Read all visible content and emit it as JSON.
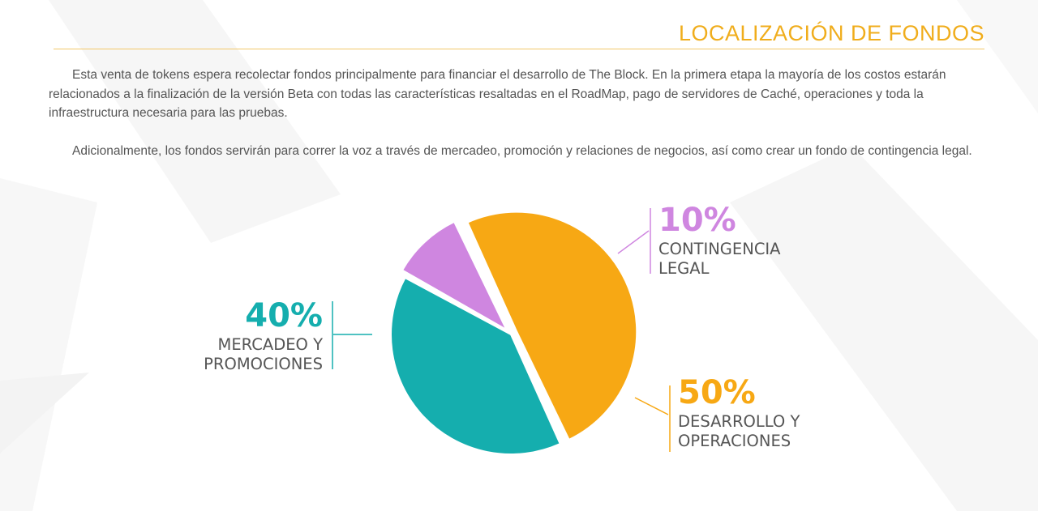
{
  "header": {
    "title": "LOCALIZACIÓN DE FONDOS"
  },
  "body": {
    "paragraph_1": "Esta venta de tokens espera recolectar fondos principalmente para financiar el desarrollo de The Block. En la primera etapa la mayoría de los costos estarán relacionados a la finalización de la versión Beta con todas las características resaltadas en el RoadMap, pago de servidores de Caché, operaciones y toda la infraestructura necesaria para las pruebas.",
    "paragraph_2": "Adicionalmente, los fondos servirán para correr la voz a través de mercadeo, promoción y relaciones de negocios, así como crear un fondo de contingencia legal."
  },
  "colors": {
    "title": "#f0ad1c",
    "rule": "#f3c86a",
    "text": "#555555"
  },
  "chart_data": {
    "type": "pie",
    "title": "",
    "slices": [
      {
        "percent_label": "10%",
        "value": 10,
        "label_lines": [
          "CONTINGENCIA",
          "LEGAL"
        ],
        "color": "#cf86e0"
      },
      {
        "percent_label": "50%",
        "value": 50,
        "label_lines": [
          "DESARROLLO Y",
          "OPERACIONES"
        ],
        "color": "#f7a814"
      },
      {
        "percent_label": "40%",
        "value": 40,
        "label_lines": [
          "MERCADEO Y",
          "PROMOCIONES"
        ],
        "color": "#15aeae"
      }
    ]
  }
}
